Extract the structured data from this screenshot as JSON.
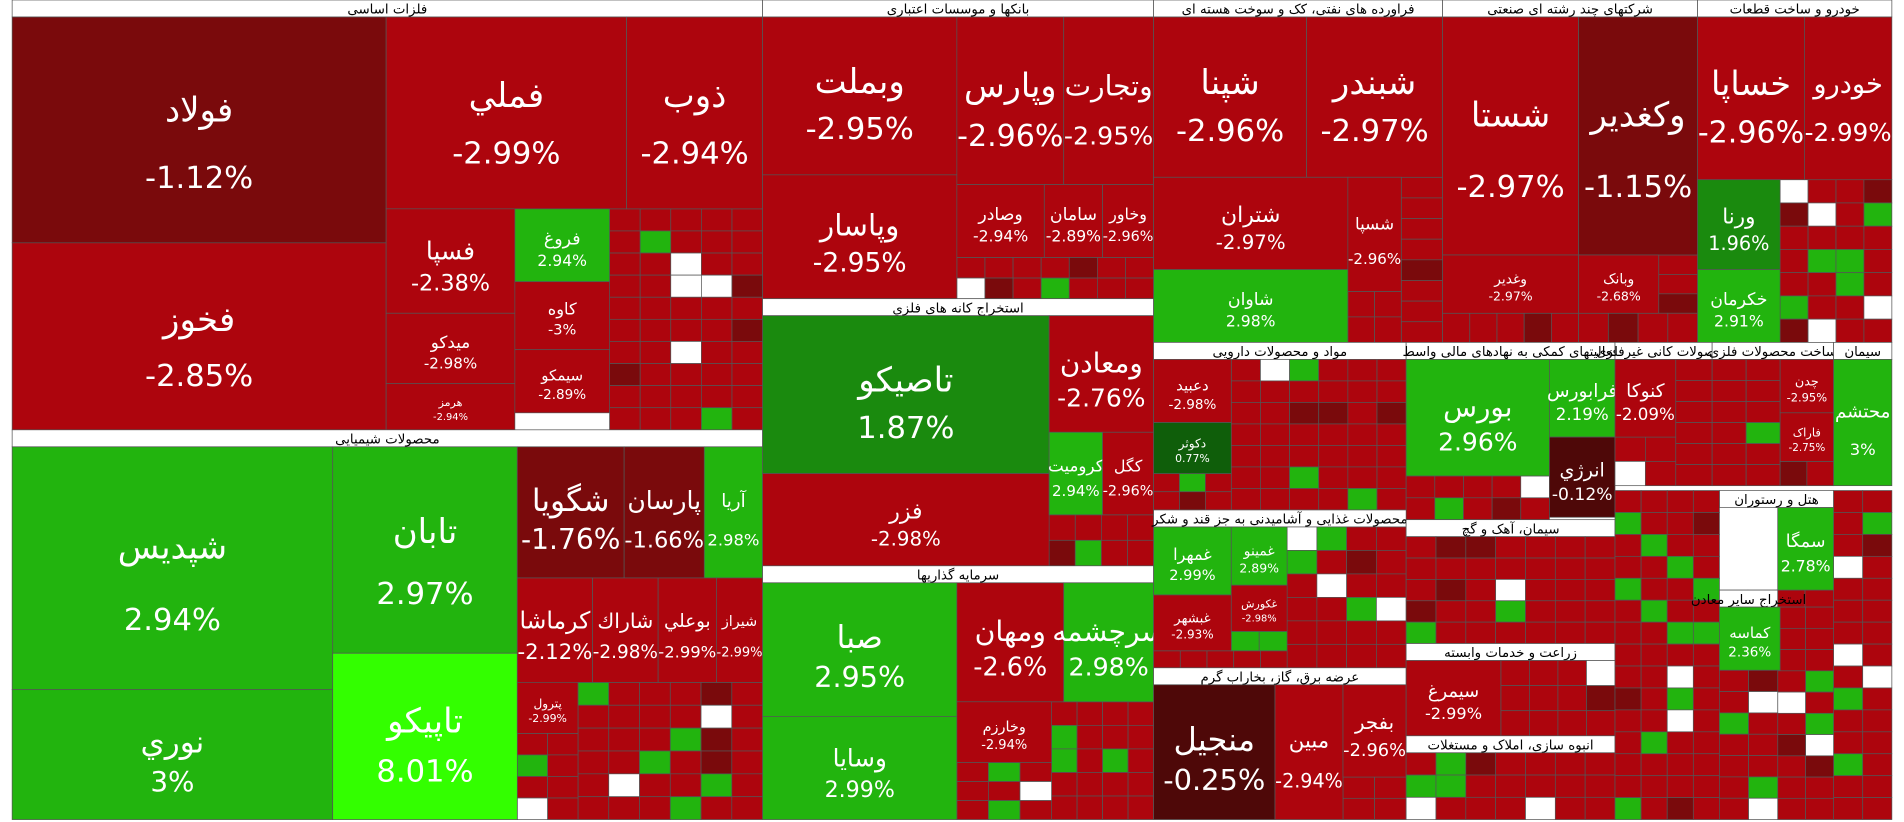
{
  "sectors": [
    {
      "title": "فلزات اساسی",
      "tiles": [
        {
          "name": "فولاد",
          "change": "-1.12%"
        },
        {
          "name": "فخوز",
          "change": "-2.85%"
        },
        {
          "name": "فملي",
          "change": "-2.99%"
        },
        {
          "name": "ذوب",
          "change": "-2.94%"
        },
        {
          "name": "فسپا",
          "change": "-2.38%"
        },
        {
          "name": "میدکو",
          "change": "-2.98%"
        },
        {
          "name": "هرمز",
          "change": "-2.94%"
        },
        {
          "name": "فروغ",
          "change": "2.94%"
        },
        {
          "name": "کاوه",
          "change": "-3%"
        },
        {
          "name": "سیمکو",
          "change": "-2.89%"
        }
      ]
    },
    {
      "title": "محصولات شیمیایی",
      "tiles": [
        {
          "name": "شپدیس",
          "change": "2.94%"
        },
        {
          "name": "نوري",
          "change": "3%"
        },
        {
          "name": "تابان",
          "change": "2.97%"
        },
        {
          "name": "تاپیکو",
          "change": "8.01%"
        },
        {
          "name": "شگویا",
          "change": "-1.76%"
        },
        {
          "name": "پارسان",
          "change": "-1.66%"
        },
        {
          "name": "آريا",
          "change": "2.98%"
        },
        {
          "name": "کرماشا",
          "change": "-2.12%"
        },
        {
          "name": "شاراك",
          "change": "-2.98%"
        },
        {
          "name": "بوعلي",
          "change": "-2.99%"
        },
        {
          "name": "شیراز",
          "change": "-2.99%"
        },
        {
          "name": "پترول",
          "change": "-2.99%"
        }
      ]
    },
    {
      "title": "بانکها و موسسات اعتباری",
      "tiles": [
        {
          "name": "وبملت",
          "change": "-2.95%"
        },
        {
          "name": "وپاسار",
          "change": "-2.95%"
        },
        {
          "name": "وپارس",
          "change": "-2.96%"
        },
        {
          "name": "وتجارت",
          "change": "-2.95%"
        },
        {
          "name": "وصادر",
          "change": "-2.94%"
        },
        {
          "name": "سامان",
          "change": "-2.89%"
        },
        {
          "name": "وخاور",
          "change": "-2.96%"
        }
      ]
    },
    {
      "title": "استخراج کانه های فلزي",
      "tiles": [
        {
          "name": "تاصیکو",
          "change": "1.87%"
        },
        {
          "name": "فزر",
          "change": "-2.98%"
        },
        {
          "name": "ومعادن",
          "change": "-2.76%"
        },
        {
          "name": "کروميت",
          "change": "2.94%"
        },
        {
          "name": "کگل",
          "change": "-2.96%"
        }
      ]
    },
    {
      "title": "سرمایه گذاریها",
      "tiles": [
        {
          "name": "صبا",
          "change": "2.95%"
        },
        {
          "name": "وسایا",
          "change": "2.99%"
        },
        {
          "name": "ومهان",
          "change": "-2.6%"
        },
        {
          "name": "سرچشمه",
          "change": "2.98%"
        },
        {
          "name": "وخارزم",
          "change": "-2.94%"
        }
      ]
    },
    {
      "title": "فراورده های نفتی، کک و سوخت هسته ای",
      "tiles": [
        {
          "name": "شپنا",
          "change": "-2.96%"
        },
        {
          "name": "شبندر",
          "change": "-2.97%"
        },
        {
          "name": "شتران",
          "change": "-2.97%"
        },
        {
          "name": "شاوان",
          "change": "2.98%"
        },
        {
          "name": "شسپا",
          "change": "-2.96%"
        }
      ]
    },
    {
      "title": "شرکتهای چند رشته ای صنعتی",
      "tiles": [
        {
          "name": "شستا",
          "change": "-2.97%"
        },
        {
          "name": "وکغدیر",
          "change": "-1.15%"
        },
        {
          "name": "وغدیر",
          "change": "-2.97%"
        },
        {
          "name": "وبانک",
          "change": "-2.68%"
        }
      ]
    },
    {
      "title": "خودرو و ساخت قطعات",
      "tiles": [
        {
          "name": "خساپا",
          "change": "-2.96%"
        },
        {
          "name": "خودرو",
          "change": "-2.99%"
        },
        {
          "name": "ورنا",
          "change": "1.96%"
        },
        {
          "name": "خکرمان",
          "change": "2.91%"
        }
      ]
    },
    {
      "title": "مواد و محصولات دارویی",
      "tiles": [
        {
          "name": "دعبيد",
          "change": "-2.98%"
        },
        {
          "name": "دکوثر",
          "change": "0.77%"
        }
      ]
    },
    {
      "title": "فعالیتهای کمکی به نهادهای مالی واسط",
      "tiles": [
        {
          "name": "بورس",
          "change": "2.96%"
        },
        {
          "name": "فرابورس",
          "change": "2.19%"
        },
        {
          "name": "انرژي",
          "change": "-0.12%"
        }
      ]
    },
    {
      "title": "محصولات غذایی و آشامیدنی به جز قند و شکر",
      "tiles": [
        {
          "name": "غمهرا",
          "change": "2.99%"
        },
        {
          "name": "غبشهر",
          "change": "-2.93%"
        },
        {
          "name": "غمینو",
          "change": "2.89%"
        },
        {
          "name": "غکورش",
          "change": "-2.98%"
        }
      ]
    },
    {
      "title": "عرضه برق، گاز، بخاراب گرم",
      "tiles": [
        {
          "name": "منجیل",
          "change": "-0.25%"
        },
        {
          "name": "مبین",
          "change": "-2.94%"
        },
        {
          "name": "بفجر",
          "change": "-2.96%"
        }
      ]
    },
    {
      "title": "سیمان، آهک و گچ",
      "tiles": []
    },
    {
      "title": "زراعت و خدمات وابسته",
      "tiles": [
        {
          "name": "سیمرغ",
          "change": "-2.99%"
        }
      ]
    },
    {
      "title": "انبوه سازی، املاک و مستغلات",
      "tiles": []
    },
    {
      "title": "محصولات کانی غیرفلزی",
      "tiles": [
        {
          "name": "کنوکا",
          "change": "-2.09%"
        }
      ]
    },
    {
      "title": "ساخت محصولات فلزی",
      "tiles": [
        {
          "name": "چدن",
          "change": "-2.95%"
        },
        {
          "name": "فاراک",
          "change": "-2.75%"
        }
      ]
    },
    {
      "title": "سیمان",
      "tiles": [
        {
          "name": "محتشم",
          "change": "3%"
        }
      ]
    },
    {
      "title": "هتل و رستوران",
      "tiles": [
        {
          "name": "سمگا",
          "change": "2.78%"
        }
      ]
    },
    {
      "title": "استخراج سایر معادن",
      "tiles": [
        {
          "name": "کماسه",
          "change": "2.36%"
        }
      ]
    }
  ]
}
